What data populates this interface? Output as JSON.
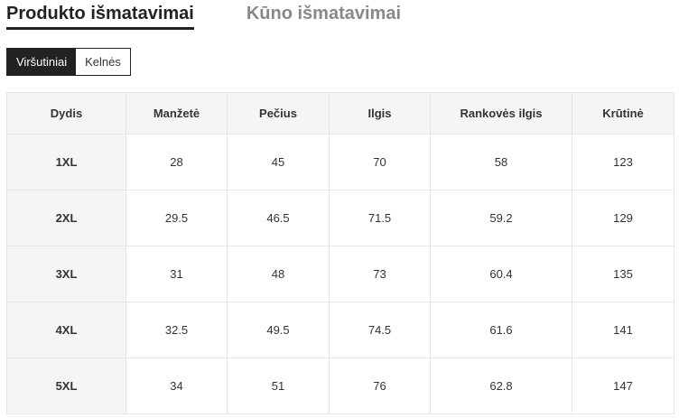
{
  "tabs": [
    {
      "label": "Produkto išmatavimai",
      "active": true
    },
    {
      "label": "Kūno išmatavimai",
      "active": false
    }
  ],
  "categories": [
    {
      "label": "Viršutiniai",
      "active": true
    },
    {
      "label": "Kelnės",
      "active": false
    }
  ],
  "table": {
    "headers": [
      "Dydis",
      "Manžetė",
      "Pečius",
      "Ilgis",
      "Rankovės ilgis",
      "Krūtinė"
    ],
    "rows": [
      [
        "1XL",
        "28",
        "45",
        "70",
        "58",
        "123"
      ],
      [
        "2XL",
        "29.5",
        "46.5",
        "71.5",
        "59.2",
        "129"
      ],
      [
        "3XL",
        "31",
        "48",
        "73",
        "60.4",
        "135"
      ],
      [
        "4XL",
        "32.5",
        "49.5",
        "74.5",
        "61.6",
        "141"
      ],
      [
        "5XL",
        "34",
        "51",
        "76",
        "62.8",
        "147"
      ]
    ]
  }
}
